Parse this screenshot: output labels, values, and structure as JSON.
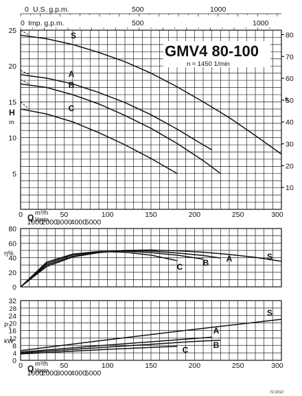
{
  "chart_data": [
    {
      "type": "line",
      "name_text": "GMV4 80-100",
      "speed_text": "n ≈ 1450 1/min",
      "y_left_label": "H",
      "y_left_unit": "m",
      "y_right_label": "ft",
      "top_axis_1_label": "U.S. g.p.m.",
      "top_axis_1_ticks": [
        0,
        500,
        1000
      ],
      "top_axis_2_label": "Imp. g.p.m.",
      "top_axis_2_ticks": [
        0,
        500,
        1000
      ],
      "x_label_q": "Q",
      "x_unit_m3h": "m³/h",
      "x_unit_lmin": "l/min",
      "x_ticks_m3h": [
        0,
        50,
        100,
        150,
        200,
        250,
        300
      ],
      "x_ticks_lmin": [
        1000,
        2000,
        3000,
        4000,
        5000
      ],
      "x_lim": [
        0,
        300
      ],
      "y_lim": [
        0,
        25
      ],
      "y_ticks": [
        5,
        10,
        15,
        20,
        25
      ],
      "y_right_ticks": [
        10,
        20,
        30,
        40,
        50,
        60,
        70,
        80
      ],
      "grid": true,
      "series": [
        {
          "name": "S",
          "x": [
            0,
            30,
            60,
            90,
            120,
            150,
            180,
            210,
            240,
            270,
            300
          ],
          "y": [
            24.3,
            23.8,
            23.0,
            21.9,
            20.6,
            19.0,
            17.1,
            15.0,
            12.8,
            10.3,
            7.7
          ]
        },
        {
          "name": "A",
          "x": [
            0,
            30,
            60,
            90,
            120,
            150,
            180,
            210,
            220
          ],
          "y": [
            18.8,
            18.3,
            17.5,
            16.3,
            14.9,
            13.2,
            11.2,
            9.0,
            8.3
          ]
        },
        {
          "name": "B",
          "x": [
            0,
            30,
            60,
            90,
            120,
            150,
            180,
            210,
            230
          ],
          "y": [
            17.5,
            17.0,
            16.0,
            14.7,
            13.1,
            11.3,
            9.2,
            6.8,
            5.0
          ]
        },
        {
          "name": "C",
          "x": [
            0,
            30,
            60,
            90,
            120,
            150,
            180
          ],
          "y": [
            14.0,
            13.3,
            12.2,
            10.7,
            9.0,
            7.1,
            5.0
          ]
        }
      ],
      "shutoff_dashed": [
        {
          "name": "S",
          "y0": 25.0,
          "y1": 24.3
        },
        {
          "name": "A",
          "y0": 19.4,
          "y1": 18.8
        },
        {
          "name": "B",
          "y0": 18.1,
          "y1": 17.5
        },
        {
          "name": "C",
          "y0": 15.0,
          "y1": 14.0
        }
      ]
    },
    {
      "type": "line",
      "y_label": "η%",
      "x_label_q": "Q",
      "x_unit_m3h": "m³/h",
      "x_unit_lmin": "l/min",
      "x_ticks_m3h": [
        0,
        50,
        100,
        150,
        200,
        250,
        300
      ],
      "x_ticks_lmin": [
        1000,
        2000,
        3000,
        4000,
        5000
      ],
      "x_lim": [
        0,
        300
      ],
      "y_lim": [
        0,
        80
      ],
      "y_ticks": [
        0,
        20,
        40,
        60,
        80
      ],
      "grid": true,
      "series": [
        {
          "name": "S",
          "x": [
            0,
            30,
            60,
            90,
            120,
            150,
            180,
            210,
            240,
            270,
            300
          ],
          "y": [
            0,
            28,
            41,
            47,
            50,
            50.5,
            49.5,
            47.5,
            44.5,
            40.5,
            35
          ]
        },
        {
          "name": "A",
          "x": [
            0,
            30,
            60,
            90,
            120,
            150,
            180,
            210,
            230
          ],
          "y": [
            0,
            30,
            42,
            48,
            50,
            49,
            46.5,
            43,
            39.5
          ]
        },
        {
          "name": "B",
          "x": [
            0,
            30,
            60,
            90,
            120,
            150,
            180,
            210
          ],
          "y": [
            0,
            32,
            44,
            48.5,
            49,
            47,
            43.5,
            38
          ]
        },
        {
          "name": "C",
          "x": [
            0,
            30,
            60,
            90,
            120,
            150,
            180
          ],
          "y": [
            0,
            34,
            45,
            48.5,
            47.5,
            43.5,
            36
          ]
        }
      ]
    },
    {
      "type": "line",
      "y_label": "P₂",
      "y_unit": "kW",
      "x_label_q": "Q",
      "x_unit_m3h": "m³/h",
      "x_unit_lmin": "l/min",
      "x_ticks_m3h": [
        0,
        50,
        100,
        150,
        200,
        250,
        300
      ],
      "x_ticks_lmin": [
        1000,
        2000,
        3000,
        4000,
        5000
      ],
      "x_lim": [
        0,
        300
      ],
      "y_lim": [
        0,
        32
      ],
      "y_ticks": [
        0,
        8,
        16,
        24,
        32
      ],
      "y_minor_ticks": [
        4,
        12,
        20,
        28
      ],
      "grid": true,
      "series": [
        {
          "name": "S",
          "x": [
            0,
            100,
            200,
            300
          ],
          "y": [
            5.2,
            11.0,
            16.6,
            22.0
          ]
        },
        {
          "name": "A",
          "x": [
            0,
            100,
            200,
            220
          ],
          "y": [
            4.4,
            8.2,
            11.7,
            12.4
          ]
        },
        {
          "name": "B",
          "x": [
            0,
            100,
            200,
            230
          ],
          "y": [
            3.9,
            7.1,
            10.1,
            10.8
          ]
        },
        {
          "name": "C",
          "x": [
            0,
            100,
            180
          ],
          "y": [
            3.4,
            5.9,
            7.5
          ]
        }
      ]
    }
  ],
  "footer": {
    "code": "72.2012"
  }
}
